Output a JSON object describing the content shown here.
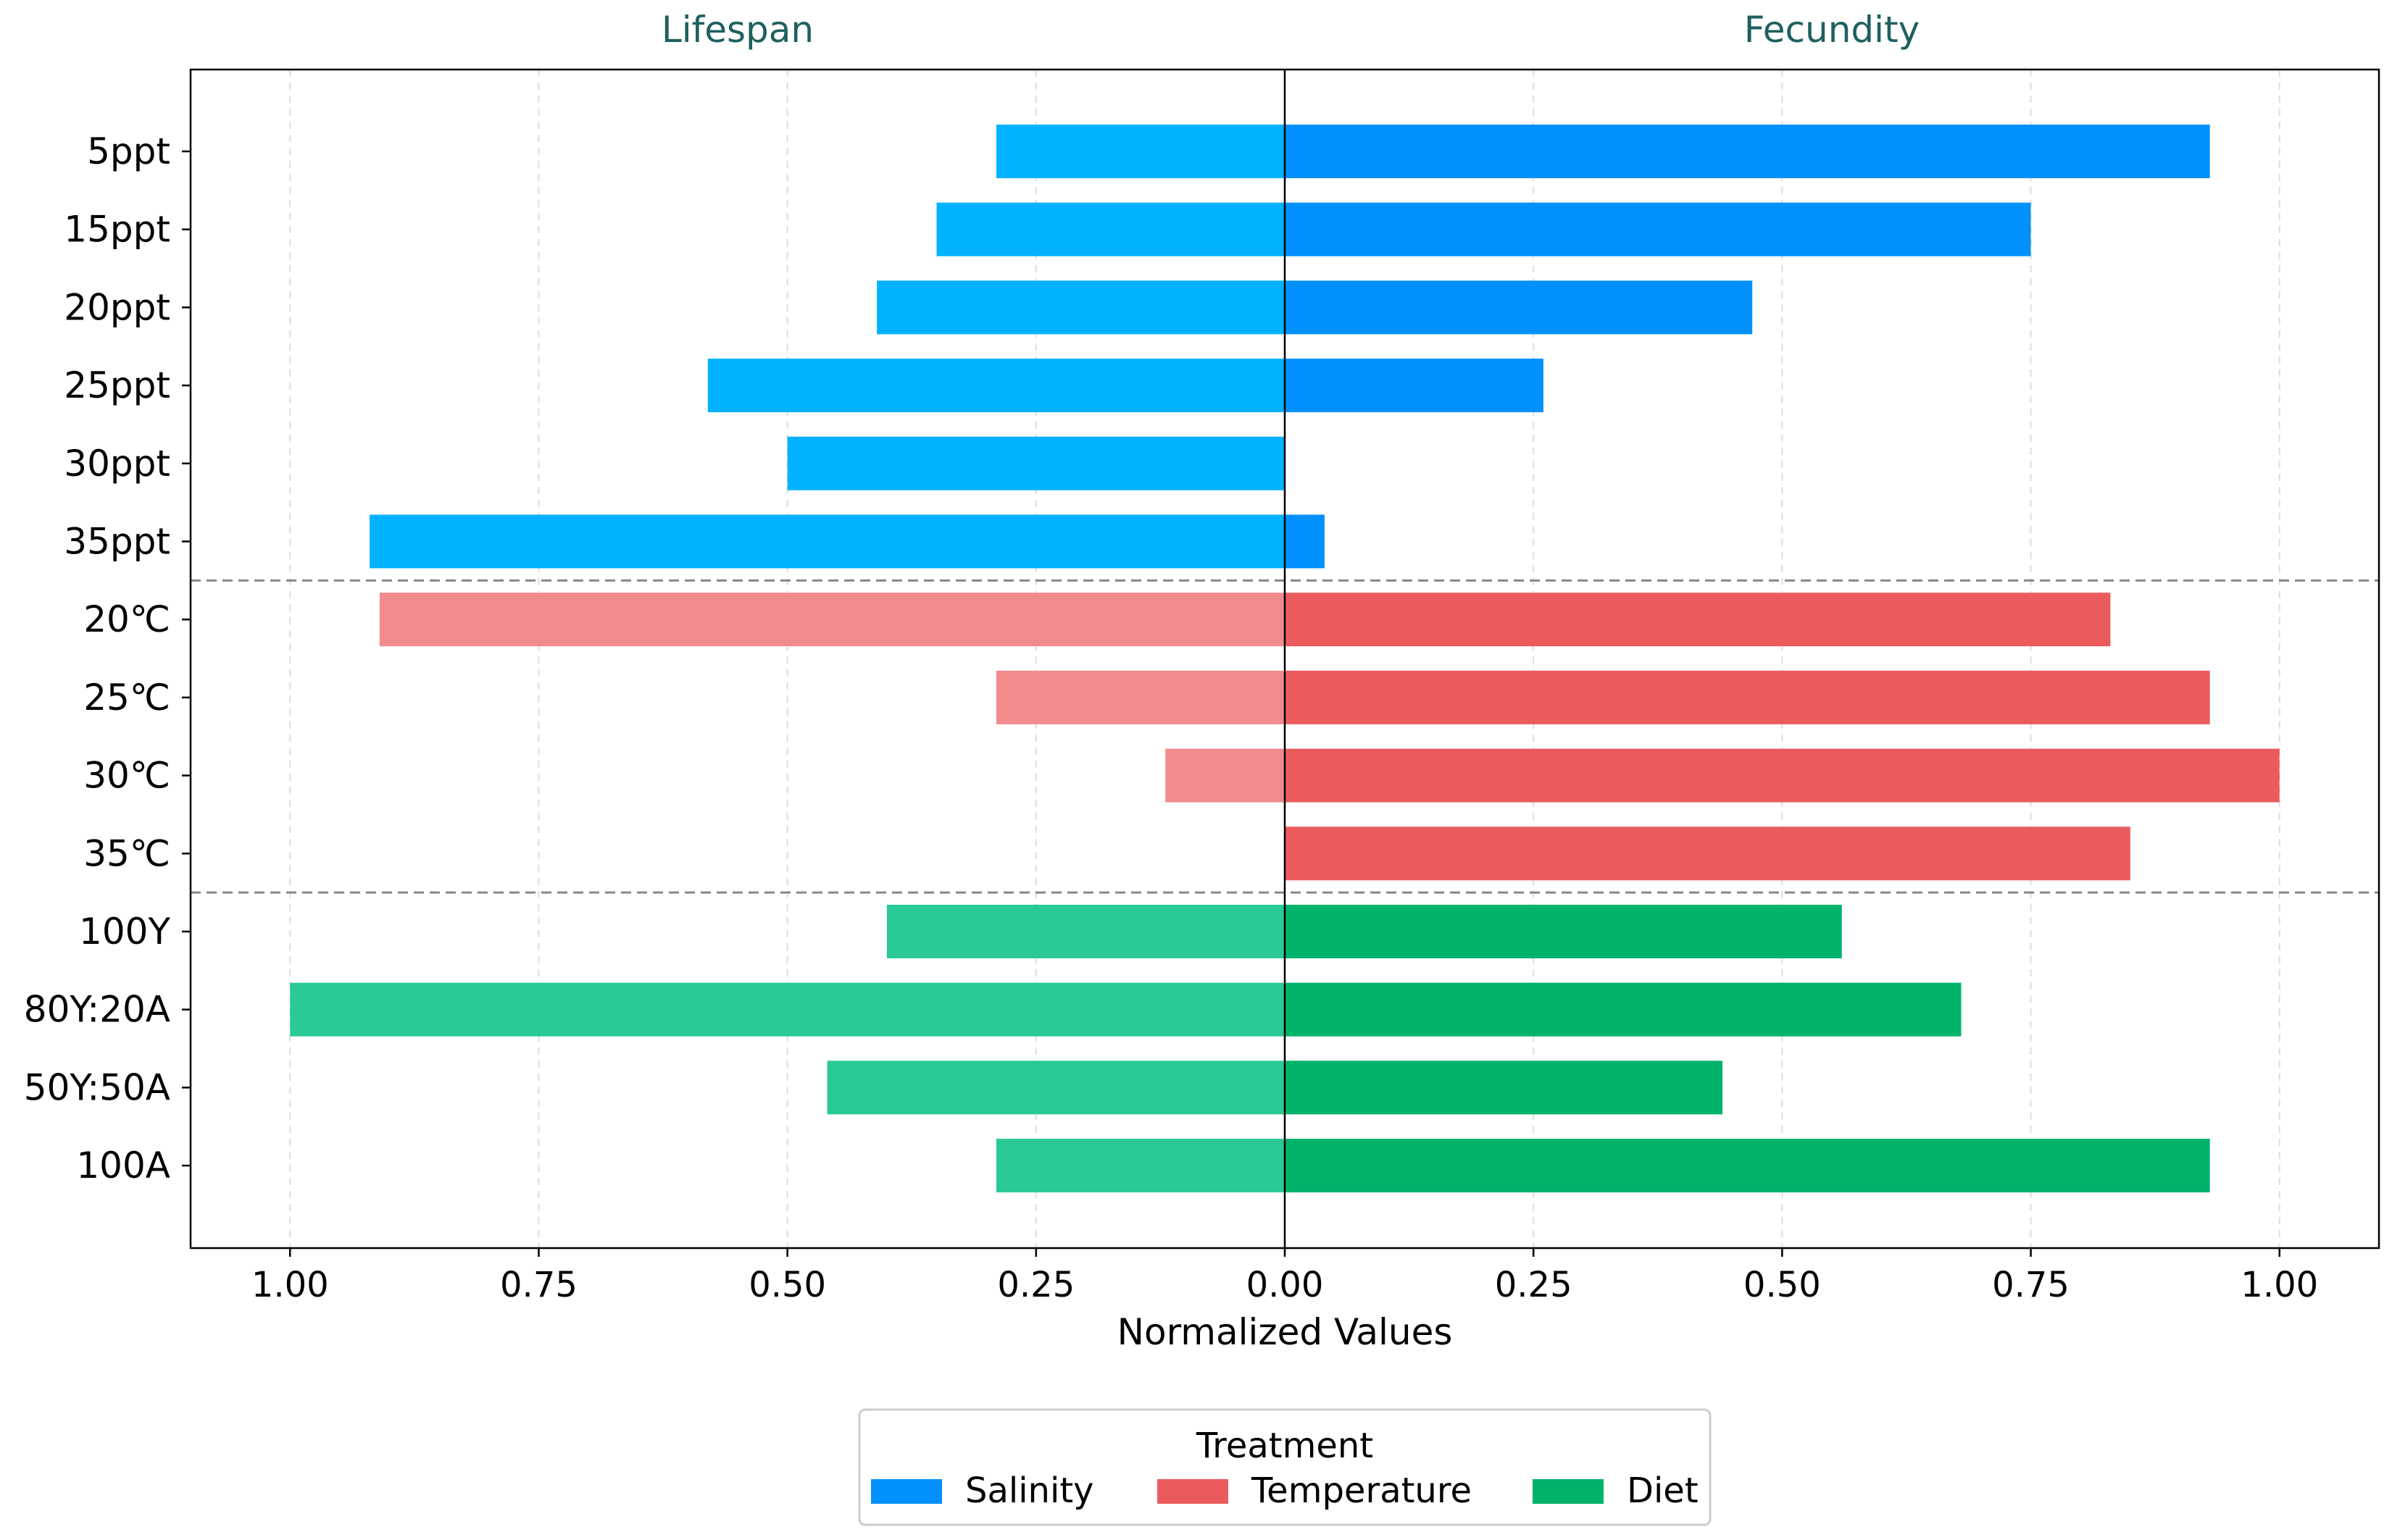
{
  "chart_data": {
    "type": "bar",
    "orientation": "horizontal-diverging",
    "panel_titles": [
      "Lifespan",
      "Fecundity"
    ],
    "xlabel": "Normalized Values",
    "xlim": [
      -1.1,
      1.1
    ],
    "xticks": [
      -1.0,
      -0.75,
      -0.5,
      -0.25,
      0.0,
      0.25,
      0.5,
      0.75,
      1.0
    ],
    "xtick_labels": [
      "1.00",
      "0.75",
      "0.50",
      "0.25",
      "0.00",
      "0.25",
      "0.50",
      "0.75",
      "1.00"
    ],
    "grid": "vertical-dashed",
    "categories": [
      "5ppt",
      "15ppt",
      "20ppt",
      "25ppt",
      "30ppt",
      "35ppt",
      "20℃",
      "25℃",
      "30℃",
      "35℃",
      "100Y",
      "80Y:20A",
      "50Y:50A",
      "100A"
    ],
    "groups": [
      "Salinity",
      "Salinity",
      "Salinity",
      "Salinity",
      "Salinity",
      "Salinity",
      "Temperature",
      "Temperature",
      "Temperature",
      "Temperature",
      "Diet",
      "Diet",
      "Diet",
      "Diet"
    ],
    "series": [
      {
        "name": "Lifespan",
        "values": [
          0.29,
          0.35,
          0.41,
          0.58,
          0.5,
          0.92,
          0.91,
          0.29,
          0.12,
          0.0,
          0.4,
          1.0,
          0.46,
          0.29
        ]
      },
      {
        "name": "Fecundity",
        "values": [
          0.93,
          0.75,
          0.47,
          0.26,
          0.0,
          0.04,
          0.83,
          0.93,
          1.0,
          0.85,
          0.56,
          0.68,
          0.44,
          0.93
        ]
      }
    ],
    "group_separators_after": [
      5,
      9
    ],
    "legend": {
      "title": "Treatment",
      "position": "bottom-center",
      "entries": [
        {
          "name": "Salinity",
          "color": "#0091ff"
        },
        {
          "name": "Temperature",
          "color": "#eb5b5e"
        },
        {
          "name": "Diet",
          "color": "#00b36b"
        }
      ]
    },
    "colors": {
      "Salinity": {
        "lifespan": "#00b2ff",
        "fecundity": "#0091ff"
      },
      "Temperature": {
        "lifespan": "#f28b8b",
        "fecundity": "#eb5b5e"
      },
      "Diet": {
        "lifespan": "#29c998",
        "fecundity": "#00b36b"
      }
    },
    "title_color": "#1f5f5f"
  }
}
